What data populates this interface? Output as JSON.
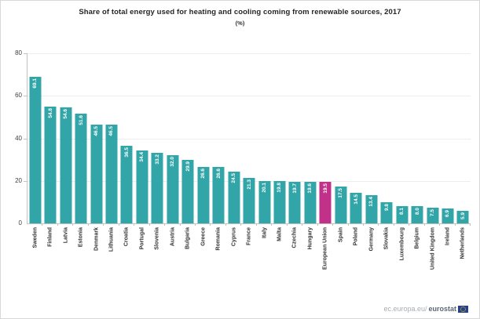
{
  "title": "Share of total energy used for heating and cooling coming from renewable sources, 2017",
  "subtitle": "(%)",
  "footer": {
    "url_prefix": "ec.europa.eu/",
    "brand": "eurostat",
    "flag_icon": "eu-flag-icon"
  },
  "colors": {
    "bar": "#31a5a8",
    "highlight": "#c23189",
    "grid": "#ededed",
    "axis": "#c2c2c2",
    "value_label": "#ffffff",
    "flag_blue": "#24408f",
    "flag_stars": "#ffcc00"
  },
  "chart_data": {
    "type": "bar",
    "title": "Share of total energy used for heating and cooling coming from renewable sources, 2017",
    "subtitle": "(%)",
    "categories": [
      "Sweden",
      "Finland",
      "Latvia",
      "Estonia",
      "Denmark",
      "Lithuania",
      "Croatia",
      "Portugal",
      "Slovenia",
      "Austria",
      "Bulgaria",
      "Greece",
      "Romania",
      "Cyprus",
      "France",
      "Italy",
      "Malta",
      "Czechia",
      "Hungary",
      "European Union",
      "Spain",
      "Poland",
      "Germany",
      "Slovakia",
      "Luxembourg",
      "Belgium",
      "United Kingdom",
      "Ireland",
      "Netherlands"
    ],
    "values": [
      69.1,
      54.8,
      54.6,
      51.6,
      46.5,
      46.5,
      36.5,
      34.4,
      33.2,
      32.0,
      29.9,
      26.6,
      26.6,
      24.5,
      21.3,
      20.1,
      19.8,
      19.7,
      19.6,
      19.5,
      17.5,
      14.5,
      13.4,
      9.8,
      8.1,
      8.0,
      7.5,
      6.9,
      5.9
    ],
    "highlight_category": "European Union",
    "xlabel": "",
    "ylabel": "",
    "ylim": [
      0,
      80
    ],
    "yticks": [
      0,
      20,
      40,
      60,
      80
    ],
    "grid": true,
    "legend": false,
    "value_label_format": "one-decimal",
    "label_orientation": "rotated-90-bottom-to-top"
  }
}
